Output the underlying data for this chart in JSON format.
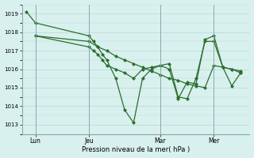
{
  "background_color": "#d8f0ee",
  "grid_color": "#b8d8d4",
  "line_color": "#2d6e2d",
  "marker_color": "#2d6e2d",
  "xlabel": "Pression niveau de la mer( hPa )",
  "ylim": [
    1012.5,
    1019.5
  ],
  "yticks": [
    1013,
    1014,
    1015,
    1016,
    1017,
    1018,
    1019
  ],
  "xtick_labels": [
    "Lun",
    "Jeu",
    "Mar",
    "Mer"
  ],
  "xtick_positions": [
    1,
    7,
    15,
    21
  ],
  "vline_positions": [
    1,
    7,
    15,
    21
  ],
  "series1_x": [
    0,
    1,
    7,
    7.5,
    8,
    8.5,
    9,
    10,
    11,
    12,
    13,
    14,
    15,
    16,
    17,
    18,
    19,
    20,
    21,
    22,
    23,
    24
  ],
  "series1_y": [
    1019.1,
    1018.5,
    1017.8,
    1017.5,
    1017.2,
    1016.8,
    1016.5,
    1015.5,
    1013.8,
    1013.1,
    1015.5,
    1016.0,
    1016.2,
    1016.3,
    1014.5,
    1014.4,
    1015.5,
    1017.5,
    1017.5,
    1016.1,
    1015.1,
    1015.8
  ],
  "series2_x": [
    1,
    7,
    8,
    9,
    10,
    11,
    12,
    13,
    14,
    15,
    16,
    17,
    18,
    19,
    20,
    21,
    22,
    23,
    24
  ],
  "series2_y": [
    1017.8,
    1017.5,
    1017.2,
    1017.0,
    1016.7,
    1016.5,
    1016.3,
    1016.1,
    1015.9,
    1015.7,
    1015.5,
    1015.4,
    1015.2,
    1015.1,
    1015.0,
    1016.2,
    1016.1,
    1016.0,
    1015.9
  ],
  "series3_x": [
    1,
    7,
    7.5,
    8,
    8.5,
    9,
    10,
    11,
    12,
    13,
    14,
    15,
    16,
    17,
    18,
    19,
    20,
    21,
    22,
    23,
    24
  ],
  "series3_y": [
    1017.8,
    1017.2,
    1017.0,
    1016.8,
    1016.5,
    1016.2,
    1016.0,
    1015.8,
    1015.5,
    1016.0,
    1016.1,
    1016.2,
    1016.0,
    1014.4,
    1015.3,
    1015.2,
    1017.6,
    1017.8,
    1016.1,
    1016.0,
    1015.8
  ]
}
